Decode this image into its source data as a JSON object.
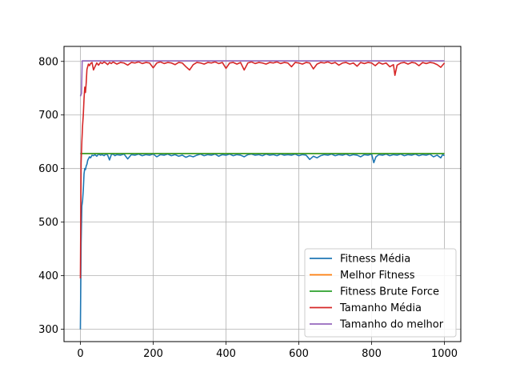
{
  "chart_data": {
    "type": "line",
    "title": "",
    "xlabel": "",
    "ylabel": "",
    "xlim": [
      -45,
      1045
    ],
    "ylim": [
      277,
      828
    ],
    "xticks": [
      0,
      200,
      400,
      600,
      800,
      1000
    ],
    "yticks": [
      300,
      400,
      500,
      600,
      700,
      800
    ],
    "grid": true,
    "legend_position": "lower-right",
    "series": [
      {
        "name": "Fitness Média",
        "color": "#1f77b4",
        "points": [
          [
            0,
            300
          ],
          [
            2,
            460
          ],
          [
            4,
            530
          ],
          [
            6,
            540
          ],
          [
            8,
            560
          ],
          [
            10,
            590
          ],
          [
            12,
            600
          ],
          [
            14,
            598
          ],
          [
            16,
            605
          ],
          [
            18,
            608
          ],
          [
            20,
            615
          ],
          [
            22,
            618
          ],
          [
            25,
            622
          ],
          [
            28,
            620
          ],
          [
            32,
            625
          ],
          [
            36,
            624
          ],
          [
            40,
            626
          ],
          [
            45,
            623
          ],
          [
            50,
            627
          ],
          [
            55,
            625
          ],
          [
            60,
            626
          ],
          [
            65,
            624
          ],
          [
            70,
            627
          ],
          [
            75,
            625
          ],
          [
            80,
            616
          ],
          [
            85,
            626
          ],
          [
            90,
            627
          ],
          [
            95,
            624
          ],
          [
            100,
            626
          ],
          [
            110,
            625
          ],
          [
            120,
            627
          ],
          [
            130,
            618
          ],
          [
            140,
            626
          ],
          [
            150,
            625
          ],
          [
            160,
            627
          ],
          [
            170,
            624
          ],
          [
            180,
            626
          ],
          [
            190,
            625
          ],
          [
            200,
            627
          ],
          [
            210,
            622
          ],
          [
            220,
            626
          ],
          [
            230,
            625
          ],
          [
            240,
            627
          ],
          [
            250,
            624
          ],
          [
            260,
            626
          ],
          [
            270,
            623
          ],
          [
            280,
            625
          ],
          [
            290,
            621
          ],
          [
            300,
            624
          ],
          [
            310,
            622
          ],
          [
            320,
            625
          ],
          [
            330,
            627
          ],
          [
            340,
            624
          ],
          [
            350,
            626
          ],
          [
            360,
            625
          ],
          [
            370,
            627
          ],
          [
            380,
            623
          ],
          [
            390,
            626
          ],
          [
            400,
            625
          ],
          [
            410,
            627
          ],
          [
            420,
            624
          ],
          [
            430,
            626
          ],
          [
            440,
            625
          ],
          [
            450,
            622
          ],
          [
            460,
            626
          ],
          [
            470,
            627
          ],
          [
            480,
            625
          ],
          [
            490,
            626
          ],
          [
            500,
            624
          ],
          [
            510,
            627
          ],
          [
            520,
            625
          ],
          [
            530,
            626
          ],
          [
            540,
            624
          ],
          [
            550,
            627
          ],
          [
            560,
            625
          ],
          [
            570,
            626
          ],
          [
            580,
            625
          ],
          [
            590,
            627
          ],
          [
            600,
            624
          ],
          [
            610,
            626
          ],
          [
            620,
            625
          ],
          [
            630,
            617
          ],
          [
            640,
            623
          ],
          [
            650,
            620
          ],
          [
            660,
            624
          ],
          [
            670,
            626
          ],
          [
            680,
            625
          ],
          [
            690,
            627
          ],
          [
            700,
            624
          ],
          [
            710,
            626
          ],
          [
            720,
            625
          ],
          [
            730,
            627
          ],
          [
            740,
            624
          ],
          [
            750,
            626
          ],
          [
            760,
            625
          ],
          [
            770,
            622
          ],
          [
            780,
            626
          ],
          [
            790,
            625
          ],
          [
            800,
            627
          ],
          [
            806,
            611
          ],
          [
            812,
            622
          ],
          [
            820,
            626
          ],
          [
            830,
            625
          ],
          [
            840,
            627
          ],
          [
            850,
            624
          ],
          [
            860,
            626
          ],
          [
            870,
            625
          ],
          [
            880,
            627
          ],
          [
            890,
            624
          ],
          [
            900,
            626
          ],
          [
            910,
            625
          ],
          [
            920,
            627
          ],
          [
            930,
            624
          ],
          [
            940,
            626
          ],
          [
            950,
            625
          ],
          [
            960,
            627
          ],
          [
            970,
            622
          ],
          [
            980,
            625
          ],
          [
            990,
            620
          ],
          [
            995,
            626
          ],
          [
            1000,
            624
          ]
        ]
      },
      {
        "name": "Melhor Fitness",
        "color": "#ff7f0e",
        "points": [
          [
            0,
            628
          ],
          [
            1000,
            628
          ]
        ]
      },
      {
        "name": "Fitness Brute Force",
        "color": "#2ca02c",
        "points": [
          [
            0,
            628
          ],
          [
            1000,
            628
          ]
        ]
      },
      {
        "name": " Tamanho Média",
        "color": "#d62728",
        "points": [
          [
            0,
            395
          ],
          [
            2,
            610
          ],
          [
            4,
            650
          ],
          [
            6,
            680
          ],
          [
            8,
            700
          ],
          [
            10,
            730
          ],
          [
            12,
            752
          ],
          [
            14,
            742
          ],
          [
            16,
            760
          ],
          [
            18,
            785
          ],
          [
            20,
            790
          ],
          [
            22,
            795
          ],
          [
            25,
            792
          ],
          [
            28,
            796
          ],
          [
            32,
            798
          ],
          [
            36,
            784
          ],
          [
            40,
            790
          ],
          [
            45,
            797
          ],
          [
            50,
            793
          ],
          [
            55,
            798
          ],
          [
            60,
            796
          ],
          [
            65,
            799
          ],
          [
            70,
            797
          ],
          [
            75,
            794
          ],
          [
            80,
            798
          ],
          [
            85,
            796
          ],
          [
            90,
            799
          ],
          [
            95,
            797
          ],
          [
            100,
            795
          ],
          [
            110,
            798
          ],
          [
            120,
            797
          ],
          [
            130,
            793
          ],
          [
            140,
            798
          ],
          [
            150,
            797
          ],
          [
            160,
            799
          ],
          [
            170,
            796
          ],
          [
            180,
            798
          ],
          [
            190,
            797
          ],
          [
            200,
            788
          ],
          [
            210,
            797
          ],
          [
            220,
            799
          ],
          [
            230,
            796
          ],
          [
            240,
            798
          ],
          [
            250,
            797
          ],
          [
            260,
            794
          ],
          [
            270,
            798
          ],
          [
            280,
            797
          ],
          [
            290,
            790
          ],
          [
            300,
            784
          ],
          [
            310,
            794
          ],
          [
            320,
            798
          ],
          [
            330,
            797
          ],
          [
            340,
            795
          ],
          [
            350,
            798
          ],
          [
            360,
            797
          ],
          [
            370,
            799
          ],
          [
            380,
            796
          ],
          [
            390,
            798
          ],
          [
            400,
            787
          ],
          [
            410,
            797
          ],
          [
            420,
            798
          ],
          [
            430,
            795
          ],
          [
            440,
            798
          ],
          [
            450,
            784
          ],
          [
            460,
            797
          ],
          [
            470,
            799
          ],
          [
            480,
            796
          ],
          [
            490,
            798
          ],
          [
            500,
            797
          ],
          [
            510,
            795
          ],
          [
            520,
            798
          ],
          [
            530,
            797
          ],
          [
            540,
            799
          ],
          [
            550,
            796
          ],
          [
            560,
            798
          ],
          [
            570,
            797
          ],
          [
            580,
            790
          ],
          [
            590,
            798
          ],
          [
            600,
            797
          ],
          [
            610,
            795
          ],
          [
            620,
            798
          ],
          [
            630,
            797
          ],
          [
            640,
            786
          ],
          [
            650,
            795
          ],
          [
            660,
            798
          ],
          [
            670,
            797
          ],
          [
            680,
            799
          ],
          [
            690,
            796
          ],
          [
            700,
            798
          ],
          [
            710,
            793
          ],
          [
            720,
            797
          ],
          [
            730,
            798
          ],
          [
            740,
            795
          ],
          [
            750,
            797
          ],
          [
            760,
            791
          ],
          [
            770,
            798
          ],
          [
            780,
            796
          ],
          [
            790,
            798
          ],
          [
            800,
            797
          ],
          [
            810,
            792
          ],
          [
            820,
            798
          ],
          [
            830,
            795
          ],
          [
            840,
            797
          ],
          [
            850,
            790
          ],
          [
            860,
            794
          ],
          [
            864,
            774
          ],
          [
            870,
            793
          ],
          [
            880,
            797
          ],
          [
            890,
            798
          ],
          [
            900,
            795
          ],
          [
            910,
            798
          ],
          [
            920,
            797
          ],
          [
            930,
            792
          ],
          [
            940,
            798
          ],
          [
            950,
            796
          ],
          [
            960,
            798
          ],
          [
            970,
            797
          ],
          [
            980,
            794
          ],
          [
            990,
            789
          ],
          [
            1000,
            797
          ]
        ]
      },
      {
        "name": "Tamanho do melhor",
        "color": "#9467bd",
        "points": [
          [
            0,
            735
          ],
          [
            3,
            740
          ],
          [
            5,
            801
          ],
          [
            1000,
            801
          ]
        ]
      }
    ]
  }
}
